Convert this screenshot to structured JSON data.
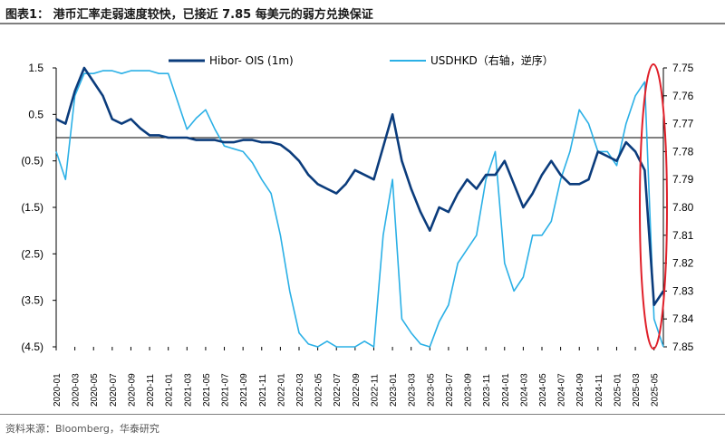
{
  "header": {
    "title": "图表1：  港币汇率走弱速度较快，已接近 7.85 每美元的弱方兑换保证"
  },
  "footer": {
    "source": "资料来源：Bloomberg，华泰研究"
  },
  "colors": {
    "hibor": "#0b3c7c",
    "usdhkd": "#2bb0e6",
    "zero_line": "#000000",
    "highlight": "#e0202a"
  },
  "chart_data": {
    "type": "line",
    "title": "",
    "grid": false,
    "legend_position": "top",
    "highlight_annotation": "red ellipse around 2025-04 to 2025-05",
    "x_start": "2020-01",
    "x_end": "2025-06",
    "x_ticks": [
      "2020-01",
      "2020-03",
      "2020-05",
      "2020-07",
      "2020-09",
      "2020-11",
      "2021-01",
      "2021-03",
      "2021-05",
      "2021-07",
      "2021-09",
      "2021-11",
      "2022-01",
      "2022-03",
      "2022-05",
      "2022-07",
      "2022-09",
      "2022-11",
      "2023-01",
      "2023-03",
      "2023-05",
      "2023-07",
      "2023-09",
      "2023-11",
      "2024-01",
      "2024-03",
      "2024-05",
      "2024-07",
      "2024-09",
      "2024-11",
      "2025-01",
      "2025-03",
      "2025-05"
    ],
    "y_left": {
      "range": [
        -4.5,
        1.5
      ],
      "tick_values": [
        1.5,
        0.5,
        -0.5,
        -1.5,
        -2.5,
        -3.5,
        -4.5
      ],
      "tick_labels": [
        "1.5",
        "0.5",
        "(0.5)",
        "(1.5)",
        "(2.5)",
        "(3.5)",
        "(4.5)"
      ]
    },
    "y_right": {
      "range": [
        7.75,
        7.85
      ],
      "inverted": true,
      "tick_values": [
        7.75,
        7.76,
        7.77,
        7.78,
        7.79,
        7.8,
        7.81,
        7.82,
        7.83,
        7.84,
        7.85
      ],
      "tick_labels": [
        "7.75",
        "7.76",
        "7.77",
        "7.78",
        "7.79",
        "7.80",
        "7.81",
        "7.82",
        "7.83",
        "7.84",
        "7.85"
      ]
    },
    "series": [
      {
        "name": "Hibor- OIS (1m)",
        "axis": "left",
        "x": [
          "2020-01",
          "2020-02",
          "2020-03",
          "2020-04",
          "2020-05",
          "2020-06",
          "2020-07",
          "2020-08",
          "2020-09",
          "2020-10",
          "2020-11",
          "2020-12",
          "2021-01",
          "2021-02",
          "2021-03",
          "2021-04",
          "2021-05",
          "2021-06",
          "2021-07",
          "2021-08",
          "2021-09",
          "2021-10",
          "2021-11",
          "2021-12",
          "2022-01",
          "2022-02",
          "2022-03",
          "2022-04",
          "2022-05",
          "2022-06",
          "2022-07",
          "2022-08",
          "2022-09",
          "2022-10",
          "2022-11",
          "2022-12",
          "2023-01",
          "2023-02",
          "2023-03",
          "2023-04",
          "2023-05",
          "2023-06",
          "2023-07",
          "2023-08",
          "2023-09",
          "2023-10",
          "2023-11",
          "2023-12",
          "2024-01",
          "2024-02",
          "2024-03",
          "2024-04",
          "2024-05",
          "2024-06",
          "2024-07",
          "2024-08",
          "2024-09",
          "2024-10",
          "2024-11",
          "2024-12",
          "2025-01",
          "2025-02",
          "2025-03",
          "2025-04",
          "2025-05",
          "2025-06"
        ],
        "values": [
          0.4,
          0.3,
          1.0,
          1.5,
          1.2,
          0.9,
          0.4,
          0.3,
          0.4,
          0.2,
          0.05,
          0.05,
          0.0,
          0.0,
          0.0,
          -0.05,
          -0.05,
          -0.05,
          -0.1,
          -0.1,
          -0.05,
          -0.05,
          -0.1,
          -0.1,
          -0.15,
          -0.3,
          -0.5,
          -0.8,
          -1.0,
          -1.1,
          -1.2,
          -1.0,
          -0.7,
          -0.8,
          -0.9,
          -0.2,
          0.5,
          -0.5,
          -1.1,
          -1.6,
          -2.0,
          -1.5,
          -1.6,
          -1.2,
          -0.9,
          -1.1,
          -0.8,
          -0.8,
          -0.5,
          -1.0,
          -1.5,
          -1.2,
          -0.8,
          -0.5,
          -0.8,
          -1.0,
          -1.0,
          -0.9,
          -0.3,
          -0.4,
          -0.5,
          -0.1,
          -0.3,
          -0.7,
          -3.6,
          -3.3
        ]
      },
      {
        "name": "USDHKD（右轴，逆序）",
        "axis": "right",
        "x": [
          "2020-01",
          "2020-02",
          "2020-03",
          "2020-04",
          "2020-05",
          "2020-06",
          "2020-07",
          "2020-08",
          "2020-09",
          "2020-10",
          "2020-11",
          "2020-12",
          "2021-01",
          "2021-02",
          "2021-03",
          "2021-04",
          "2021-05",
          "2021-06",
          "2021-07",
          "2021-08",
          "2021-09",
          "2021-10",
          "2021-11",
          "2021-12",
          "2022-01",
          "2022-02",
          "2022-03",
          "2022-04",
          "2022-05",
          "2022-06",
          "2022-07",
          "2022-08",
          "2022-09",
          "2022-10",
          "2022-11",
          "2022-12",
          "2023-01",
          "2023-02",
          "2023-03",
          "2023-04",
          "2023-05",
          "2023-06",
          "2023-07",
          "2023-08",
          "2023-09",
          "2023-10",
          "2023-11",
          "2023-12",
          "2024-01",
          "2024-02",
          "2024-03",
          "2024-04",
          "2024-05",
          "2024-06",
          "2024-07",
          "2024-08",
          "2024-09",
          "2024-10",
          "2024-11",
          "2024-12",
          "2025-01",
          "2025-02",
          "2025-03",
          "2025-04",
          "2025-05",
          "2025-06"
        ],
        "values": [
          7.78,
          7.79,
          7.76,
          7.752,
          7.752,
          7.751,
          7.751,
          7.752,
          7.751,
          7.751,
          7.751,
          7.752,
          7.752,
          7.762,
          7.772,
          7.768,
          7.765,
          7.772,
          7.778,
          7.779,
          7.78,
          7.784,
          7.79,
          7.795,
          7.81,
          7.83,
          7.845,
          7.849,
          7.85,
          7.848,
          7.85,
          7.85,
          7.85,
          7.848,
          7.85,
          7.81,
          7.79,
          7.84,
          7.845,
          7.849,
          7.85,
          7.841,
          7.835,
          7.82,
          7.815,
          7.81,
          7.79,
          7.78,
          7.82,
          7.83,
          7.825,
          7.81,
          7.81,
          7.805,
          7.79,
          7.78,
          7.765,
          7.77,
          7.78,
          7.78,
          7.785,
          7.77,
          7.76,
          7.755,
          7.84,
          7.85
        ]
      }
    ]
  }
}
